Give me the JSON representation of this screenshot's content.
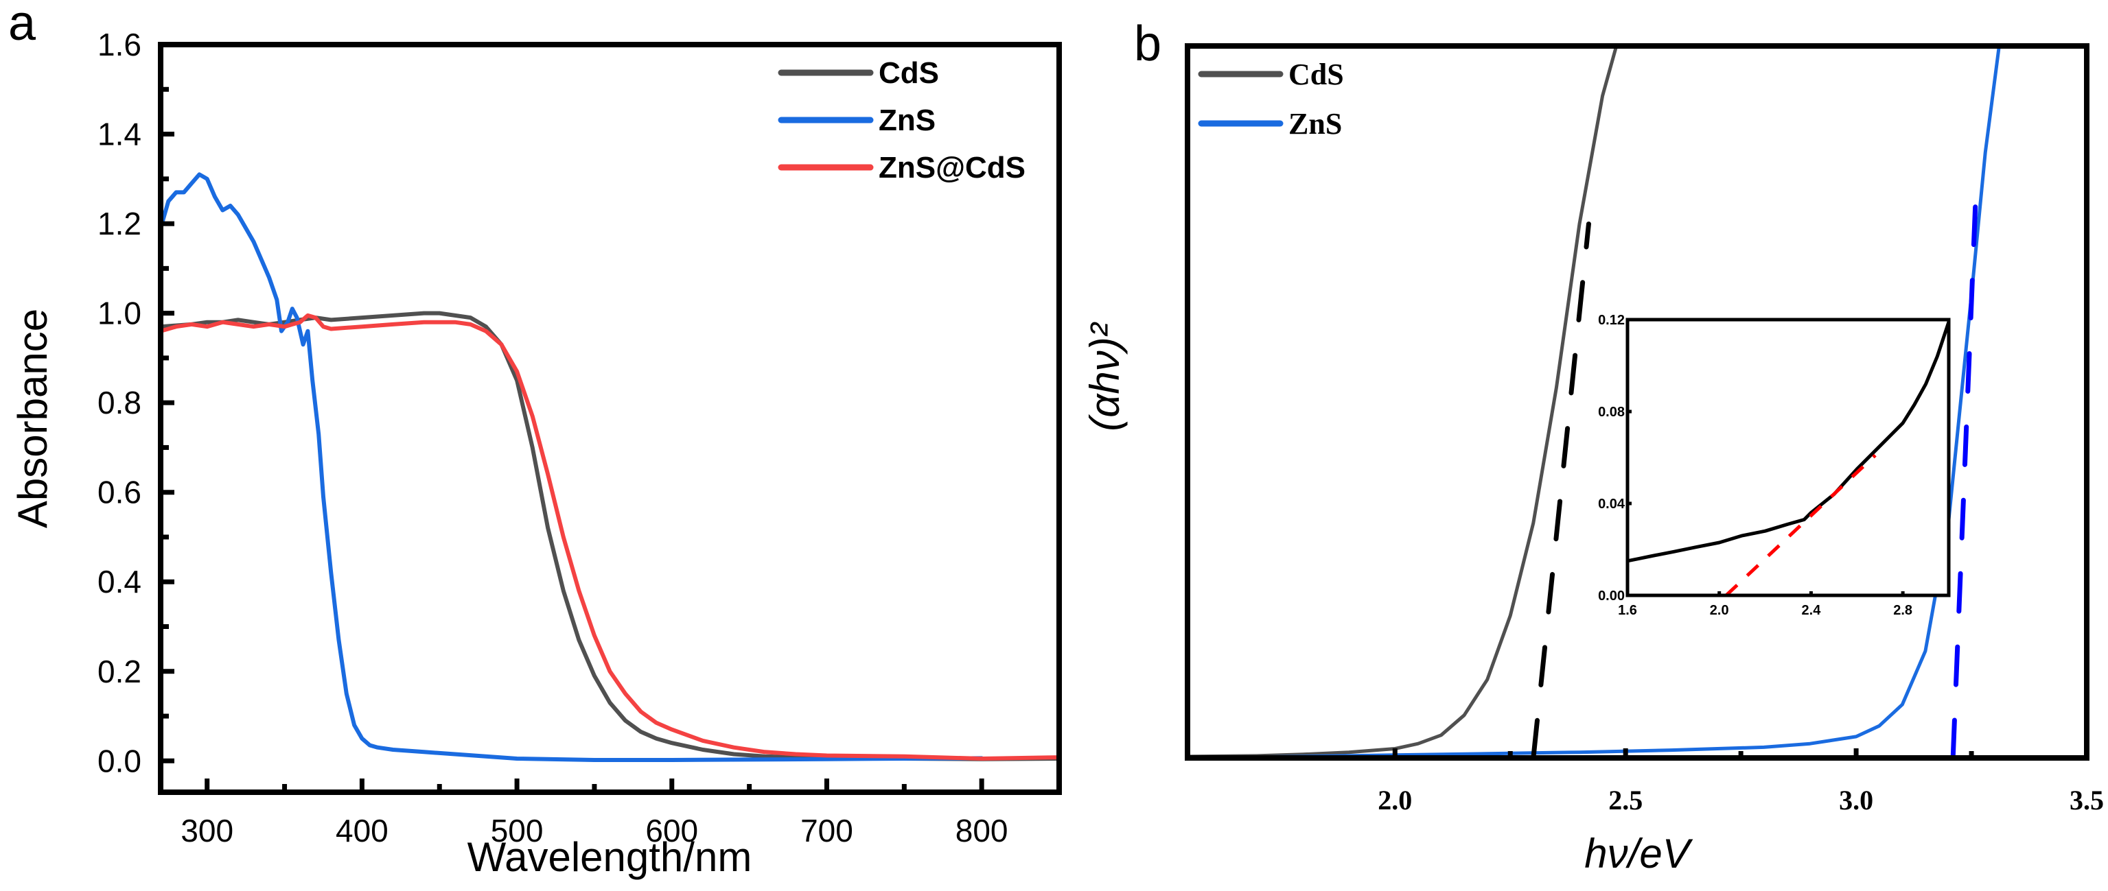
{
  "chart_data": [
    {
      "panel": "a",
      "type": "line",
      "title": "",
      "xlabel": "Wavelength/nm",
      "ylabel": "Absorbance",
      "xlim": [
        270,
        850
      ],
      "ylim": [
        -0.07,
        1.6
      ],
      "xticks": [
        300,
        400,
        500,
        600,
        700,
        800
      ],
      "xtick_labels": [
        "300",
        "400",
        "500",
        "600",
        "700",
        "800"
      ],
      "xminor": [
        350,
        450,
        550,
        650,
        750
      ],
      "yticks": [
        0.0,
        0.2,
        0.4,
        0.6,
        0.8,
        1.0,
        1.2,
        1.4,
        1.6
      ],
      "ytick_labels": [
        "0.0",
        "0.2",
        "0.4",
        "0.6",
        "0.8",
        "1.0",
        "1.2",
        "1.4",
        "1.6"
      ],
      "yminor": [
        0.1,
        0.3,
        0.5,
        0.7,
        0.9,
        1.1,
        1.3,
        1.5
      ],
      "grid": false,
      "legend_position": "top-right",
      "series": [
        {
          "name": "CdS",
          "color": "#505050",
          "x": [
            270,
            290,
            300,
            310,
            320,
            330,
            340,
            350,
            360,
            370,
            380,
            400,
            420,
            440,
            450,
            460,
            470,
            480,
            490,
            500,
            510,
            520,
            530,
            540,
            550,
            560,
            570,
            580,
            590,
            600,
            620,
            640,
            660,
            680,
            700,
            750,
            800,
            850
          ],
          "y": [
            0.97,
            0.975,
            0.98,
            0.98,
            0.985,
            0.98,
            0.975,
            0.98,
            0.985,
            0.99,
            0.985,
            0.99,
            0.995,
            1.0,
            1.0,
            0.995,
            0.99,
            0.97,
            0.93,
            0.85,
            0.7,
            0.52,
            0.38,
            0.27,
            0.19,
            0.13,
            0.09,
            0.065,
            0.05,
            0.04,
            0.025,
            0.015,
            0.01,
            0.008,
            0.006,
            0.005,
            0.004,
            0.005
          ]
        },
        {
          "name": "ZnS",
          "color": "#1a6be0",
          "x": [
            270,
            275,
            280,
            285,
            290,
            295,
            300,
            305,
            310,
            315,
            320,
            330,
            340,
            345,
            348,
            352,
            355,
            358,
            362,
            365,
            368,
            372,
            375,
            380,
            385,
            390,
            395,
            400,
            405,
            410,
            420,
            440,
            460,
            480,
            500,
            550,
            600,
            650,
            700,
            750,
            800
          ],
          "y": [
            1.19,
            1.25,
            1.27,
            1.27,
            1.29,
            1.31,
            1.3,
            1.26,
            1.23,
            1.24,
            1.22,
            1.16,
            1.08,
            1.03,
            0.96,
            0.98,
            1.01,
            0.99,
            0.93,
            0.96,
            0.85,
            0.73,
            0.59,
            0.42,
            0.27,
            0.15,
            0.08,
            0.05,
            0.035,
            0.03,
            0.025,
            0.02,
            0.015,
            0.01,
            0.005,
            0.002,
            0.002,
            0.003,
            0.004,
            0.005,
            0.006
          ]
        },
        {
          "name": "ZnS@CdS",
          "color": "#f44242",
          "x": [
            270,
            280,
            290,
            300,
            310,
            320,
            330,
            340,
            350,
            355,
            360,
            365,
            370,
            375,
            380,
            400,
            420,
            440,
            460,
            470,
            480,
            490,
            500,
            510,
            520,
            530,
            540,
            550,
            560,
            570,
            580,
            590,
            600,
            620,
            640,
            660,
            680,
            700,
            750,
            800,
            850
          ],
          "y": [
            0.96,
            0.97,
            0.975,
            0.97,
            0.98,
            0.975,
            0.97,
            0.975,
            0.97,
            0.975,
            0.98,
            0.995,
            0.99,
            0.97,
            0.965,
            0.97,
            0.975,
            0.98,
            0.98,
            0.975,
            0.96,
            0.93,
            0.87,
            0.77,
            0.64,
            0.5,
            0.38,
            0.28,
            0.2,
            0.15,
            0.11,
            0.085,
            0.07,
            0.045,
            0.03,
            0.02,
            0.015,
            0.012,
            0.01,
            0.005,
            0.008
          ]
        }
      ]
    },
    {
      "panel": "b",
      "type": "line",
      "title": "",
      "xlabel": "hν/eV",
      "ylabel": "(αhν)²",
      "xlim": [
        1.55,
        3.5
      ],
      "ylim": [
        0,
        1
      ],
      "xticks": [
        2.0,
        2.5,
        3.0,
        3.5
      ],
      "xtick_labels": [
        "2.0",
        "2.5",
        "3.0",
        "3.5"
      ],
      "xminor": [
        2.25,
        2.75,
        3.25
      ],
      "yticks": [],
      "grid": false,
      "legend_position": "top-left",
      "series": [
        {
          "name": "CdS",
          "color": "#505050",
          "x": [
            1.55,
            1.7,
            1.8,
            1.9,
            2.0,
            2.05,
            2.1,
            2.15,
            2.2,
            2.25,
            2.3,
            2.35,
            2.4,
            2.45,
            2.48
          ],
          "y": [
            0.002,
            0.003,
            0.005,
            0.008,
            0.013,
            0.02,
            0.032,
            0.06,
            0.11,
            0.2,
            0.33,
            0.52,
            0.75,
            0.93,
            1.0
          ]
        },
        {
          "name": "ZnS",
          "color": "#1a6be0",
          "x": [
            1.55,
            1.8,
            2.0,
            2.2,
            2.4,
            2.6,
            2.8,
            2.9,
            3.0,
            3.05,
            3.1,
            3.15,
            3.2,
            3.25,
            3.28,
            3.31
          ],
          "y": [
            0.0,
            0.002,
            0.004,
            0.006,
            0.008,
            0.011,
            0.015,
            0.02,
            0.03,
            0.045,
            0.075,
            0.15,
            0.33,
            0.65,
            0.85,
            1.0
          ]
        }
      ],
      "fit_lines": [
        {
          "name": "CdS tangent",
          "color": "#000000",
          "style": "dashed",
          "x": [
            2.3,
            2.42
          ],
          "y": [
            0.0,
            0.75
          ]
        },
        {
          "name": "ZnS tangent",
          "color": "#0000ff",
          "style": "dashed",
          "x": [
            3.21,
            3.26
          ],
          "y": [
            0.0,
            0.8
          ]
        }
      ],
      "band_gaps_eV": {
        "CdS": 2.3,
        "ZnS": 3.21
      },
      "inset": {
        "type": "line",
        "xlim": [
          1.6,
          3.0
        ],
        "ylim": [
          0.0,
          0.12
        ],
        "xticks": [
          1.6,
          2.0,
          2.4,
          2.8
        ],
        "xtick_labels": [
          "1.6",
          "2.0",
          "2.4",
          "2.8"
        ],
        "yticks": [
          0.0,
          0.04,
          0.08,
          0.12
        ],
        "ytick_labels": [
          "0.00",
          "0.04",
          "0.08",
          "0.12"
        ],
        "series": [
          {
            "name": "ZnS@CdS",
            "color": "#000000",
            "x": [
              1.6,
              1.65,
              1.7,
              1.8,
              1.9,
              2.0,
              2.1,
              2.2,
              2.3,
              2.37,
              2.4,
              2.5,
              2.6,
              2.7,
              2.8,
              2.85,
              2.9,
              2.95,
              3.0
            ],
            "y": [
              0.015,
              0.016,
              0.017,
              0.019,
              0.021,
              0.023,
              0.026,
              0.028,
              0.031,
              0.033,
              0.036,
              0.044,
              0.055,
              0.065,
              0.075,
              0.083,
              0.092,
              0.104,
              0.119
            ]
          }
        ],
        "fit_line": {
          "color": "#ff0000",
          "style": "dashed",
          "x": [
            2.03,
            2.68
          ],
          "y": [
            0.0,
            0.061
          ]
        }
      }
    }
  ],
  "panel_labels": {
    "a": "a",
    "b": "b"
  }
}
